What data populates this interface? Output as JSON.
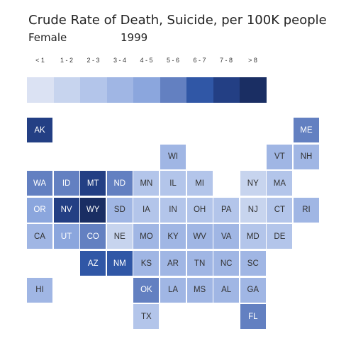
{
  "title": "Crude Rate of Death, Suicide, per 100K people",
  "subtitle_sex": "Female",
  "subtitle_year": "1999",
  "legend": {
    "bins": [
      {
        "label": "< 1",
        "color": "#dbe2f3"
      },
      {
        "label": "1 - 2",
        "color": "#c7d4ee"
      },
      {
        "label": "2 - 3",
        "color": "#b3c5ea"
      },
      {
        "label": "3 - 4",
        "color": "#a0b6e4"
      },
      {
        "label": "4 - 5",
        "color": "#8ba6dd"
      },
      {
        "label": "5 - 6",
        "color": "#6380c1"
      },
      {
        "label": "6 - 7",
        "color": "#3057a6"
      },
      {
        "label": "7 - 8",
        "color": "#233f84"
      },
      {
        "label": "> 8",
        "color": "#1a2e63"
      }
    ]
  },
  "chart_data": {
    "type": "heatmap",
    "title": "Crude Rate of Death, Suicide, per 100K people",
    "subtitle": "Female 1999",
    "color_bins": [
      "< 1",
      "1 - 2",
      "2 - 3",
      "3 - 4",
      "4 - 5",
      "5 - 6",
      "6 - 7",
      "7 - 8",
      "> 8"
    ],
    "states": [
      {
        "abbr": "AK",
        "bin": 7,
        "col": 0,
        "row": 0
      },
      {
        "abbr": "ME",
        "bin": 5,
        "col": 10,
        "row": 0
      },
      {
        "abbr": "WI",
        "bin": 3,
        "col": 5,
        "row": 1
      },
      {
        "abbr": "VT",
        "bin": 3,
        "col": 9,
        "row": 1
      },
      {
        "abbr": "NH",
        "bin": 3,
        "col": 10,
        "row": 1
      },
      {
        "abbr": "WA",
        "bin": 5,
        "col": 0,
        "row": 2
      },
      {
        "abbr": "ID",
        "bin": 5,
        "col": 1,
        "row": 2
      },
      {
        "abbr": "MT",
        "bin": 7,
        "col": 2,
        "row": 2
      },
      {
        "abbr": "ND",
        "bin": 5,
        "col": 3,
        "row": 2
      },
      {
        "abbr": "MN",
        "bin": 2,
        "col": 4,
        "row": 2
      },
      {
        "abbr": "IL",
        "bin": 2,
        "col": 5,
        "row": 2
      },
      {
        "abbr": "MI",
        "bin": 2,
        "col": 6,
        "row": 2
      },
      {
        "abbr": "NY",
        "bin": 1,
        "col": 8,
        "row": 2
      },
      {
        "abbr": "MA",
        "bin": 2,
        "col": 9,
        "row": 2
      },
      {
        "abbr": "OR",
        "bin": 4,
        "col": 0,
        "row": 3
      },
      {
        "abbr": "NV",
        "bin": 7,
        "col": 1,
        "row": 3
      },
      {
        "abbr": "WY",
        "bin": 8,
        "col": 2,
        "row": 3
      },
      {
        "abbr": "SD",
        "bin": 3,
        "col": 3,
        "row": 3
      },
      {
        "abbr": "IA",
        "bin": 2,
        "col": 4,
        "row": 3
      },
      {
        "abbr": "IN",
        "bin": 2,
        "col": 5,
        "row": 3
      },
      {
        "abbr": "OH",
        "bin": 2,
        "col": 6,
        "row": 3
      },
      {
        "abbr": "PA",
        "bin": 2,
        "col": 7,
        "row": 3
      },
      {
        "abbr": "NJ",
        "bin": 1,
        "col": 8,
        "row": 3
      },
      {
        "abbr": "CT",
        "bin": 2,
        "col": 9,
        "row": 3
      },
      {
        "abbr": "RI",
        "bin": 3,
        "col": 10,
        "row": 3
      },
      {
        "abbr": "CA",
        "bin": 3,
        "col": 0,
        "row": 4
      },
      {
        "abbr": "UT",
        "bin": 4,
        "col": 1,
        "row": 4
      },
      {
        "abbr": "CO",
        "bin": 5,
        "col": 2,
        "row": 4
      },
      {
        "abbr": "NE",
        "bin": 1,
        "col": 3,
        "row": 4
      },
      {
        "abbr": "MO",
        "bin": 3,
        "col": 4,
        "row": 4
      },
      {
        "abbr": "KY",
        "bin": 3,
        "col": 5,
        "row": 4
      },
      {
        "abbr": "WV",
        "bin": 3,
        "col": 6,
        "row": 4
      },
      {
        "abbr": "VA",
        "bin": 3,
        "col": 7,
        "row": 4
      },
      {
        "abbr": "MD",
        "bin": 2,
        "col": 8,
        "row": 4
      },
      {
        "abbr": "DE",
        "bin": 2,
        "col": 9,
        "row": 4
      },
      {
        "abbr": "AZ",
        "bin": 6,
        "col": 2,
        "row": 5
      },
      {
        "abbr": "NM",
        "bin": 6,
        "col": 3,
        "row": 5
      },
      {
        "abbr": "KS",
        "bin": 3,
        "col": 4,
        "row": 5
      },
      {
        "abbr": "AR",
        "bin": 3,
        "col": 5,
        "row": 5
      },
      {
        "abbr": "TN",
        "bin": 3,
        "col": 6,
        "row": 5
      },
      {
        "abbr": "NC",
        "bin": 3,
        "col": 7,
        "row": 5
      },
      {
        "abbr": "SC",
        "bin": 3,
        "col": 8,
        "row": 5
      },
      {
        "abbr": "HI",
        "bin": 3,
        "col": 0,
        "row": 6
      },
      {
        "abbr": "OK",
        "bin": 5,
        "col": 4,
        "row": 6
      },
      {
        "abbr": "LA",
        "bin": 3,
        "col": 5,
        "row": 6
      },
      {
        "abbr": "MS",
        "bin": 3,
        "col": 6,
        "row": 6
      },
      {
        "abbr": "AL",
        "bin": 3,
        "col": 7,
        "row": 6
      },
      {
        "abbr": "GA",
        "bin": 3,
        "col": 8,
        "row": 6
      },
      {
        "abbr": "TX",
        "bin": 2,
        "col": 4,
        "row": 7
      },
      {
        "abbr": "FL",
        "bin": 5,
        "col": 8,
        "row": 7
      }
    ]
  }
}
